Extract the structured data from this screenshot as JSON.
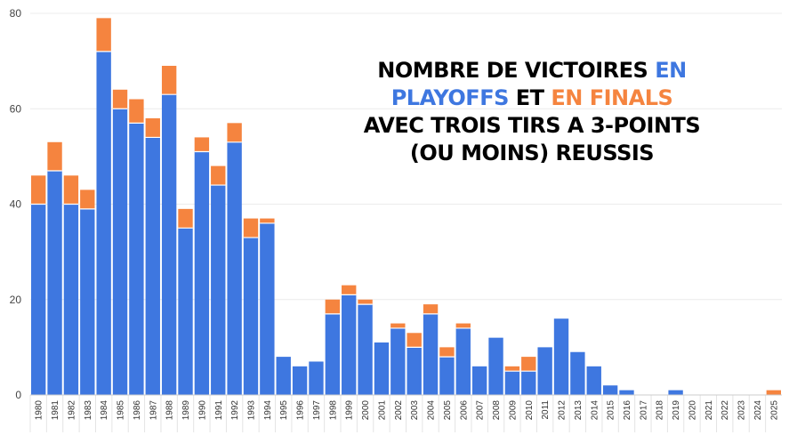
{
  "title": {
    "line1_part1": "NOMBRE DE VICTOIRES",
    "line1_part2": "EN",
    "line2_part1": "PLAYOFFS",
    "line2_part2": "ET",
    "line2_part3": "EN FINALS",
    "line3": "AVEC TROIS TIRS A 3-POINTS",
    "line4": "(OU MOINS) REUSSIS"
  },
  "colors": {
    "playoffs": "#3e77e0",
    "finals": "#f5843f",
    "grid": "#ececec",
    "background": "#ffffff"
  },
  "chart_data": {
    "type": "bar",
    "stacked": true,
    "title": "NOMBRE DE VICTOIRES EN PLAYOFFS ET EN FINALS AVEC TROIS TIRS A 3-POINTS (OU MOINS) REUSSIS",
    "categories": [
      "1980",
      "1981",
      "1982",
      "1983",
      "1984",
      "1985",
      "1986",
      "1987",
      "1988",
      "1989",
      "1990",
      "1991",
      "1992",
      "1993",
      "1994",
      "1995",
      "1996",
      "1997",
      "1998",
      "1999",
      "2000",
      "2001",
      "2002",
      "2003",
      "2004",
      "2005",
      "2006",
      "2007",
      "2008",
      "2009",
      "2010",
      "2011",
      "2012",
      "2013",
      "2014",
      "2015",
      "2016",
      "2017",
      "2018",
      "2019",
      "2020",
      "2021",
      "2022",
      "2023",
      "2024",
      "2025"
    ],
    "series": [
      {
        "name": "PLAYOFFS",
        "values": [
          40,
          47,
          40,
          39,
          72,
          60,
          57,
          54,
          63,
          35,
          51,
          44,
          53,
          33,
          36,
          8,
          6,
          7,
          17,
          21,
          19,
          11,
          14,
          10,
          17,
          8,
          14,
          6,
          12,
          5,
          5,
          10,
          16,
          9,
          6,
          2,
          1,
          0,
          0,
          1,
          0,
          0,
          0,
          0,
          0,
          0
        ]
      },
      {
        "name": "EN FINALS",
        "values": [
          6,
          6,
          6,
          4,
          7,
          4,
          5,
          4,
          6,
          4,
          3,
          4,
          4,
          4,
          1,
          0,
          0,
          0,
          3,
          2,
          1,
          0,
          1,
          3,
          2,
          2,
          1,
          0,
          0,
          1,
          3,
          0,
          0,
          0,
          0,
          0,
          0,
          0,
          0,
          0,
          0,
          0,
          0,
          0,
          0,
          1
        ]
      }
    ],
    "y_ticks": [
      "0",
      "20",
      "40",
      "60",
      "80"
    ],
    "ylim": [
      0,
      80
    ],
    "grid": true,
    "legend": "none"
  }
}
